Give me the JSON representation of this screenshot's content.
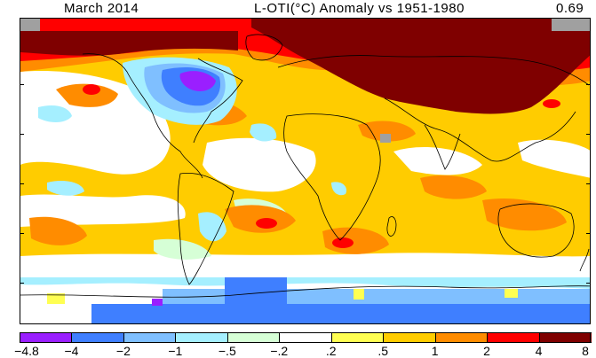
{
  "title": {
    "left": "March 2014",
    "middle": "L-OTI(°C) Anomaly vs 1951-1980",
    "right": "0.69"
  },
  "legend": {
    "bins": [
      {
        "color": "#9a1fff"
      },
      {
        "color": "#3f7fff"
      },
      {
        "color": "#7fbfff"
      },
      {
        "color": "#a5efff"
      },
      {
        "color": "#d6ffd6"
      },
      {
        "color": "#ffffff"
      },
      {
        "color": "#ffff52"
      },
      {
        "color": "#ffcc00"
      },
      {
        "color": "#ff8c00"
      },
      {
        "color": "#ff0000"
      },
      {
        "color": "#7f0000"
      }
    ],
    "labels": [
      "-4.8",
      "-4",
      "-2",
      "-1",
      "-.5",
      "-.2",
      ".2",
      ".5",
      "1",
      "2",
      "4",
      "8"
    ]
  },
  "palette": {
    "dark_red": "#7f0000",
    "red": "#ff0000",
    "orange": "#ff8c00",
    "gold": "#ffcc00",
    "yellow": "#ffff52",
    "white": "#ffffff",
    "pale_green": "#d6ffd6",
    "light_cyan": "#a5efff",
    "light_blue": "#7fbfff",
    "blue": "#3f7fff",
    "purple": "#9a1fff",
    "missing_gray": "#a0a0a0"
  }
}
